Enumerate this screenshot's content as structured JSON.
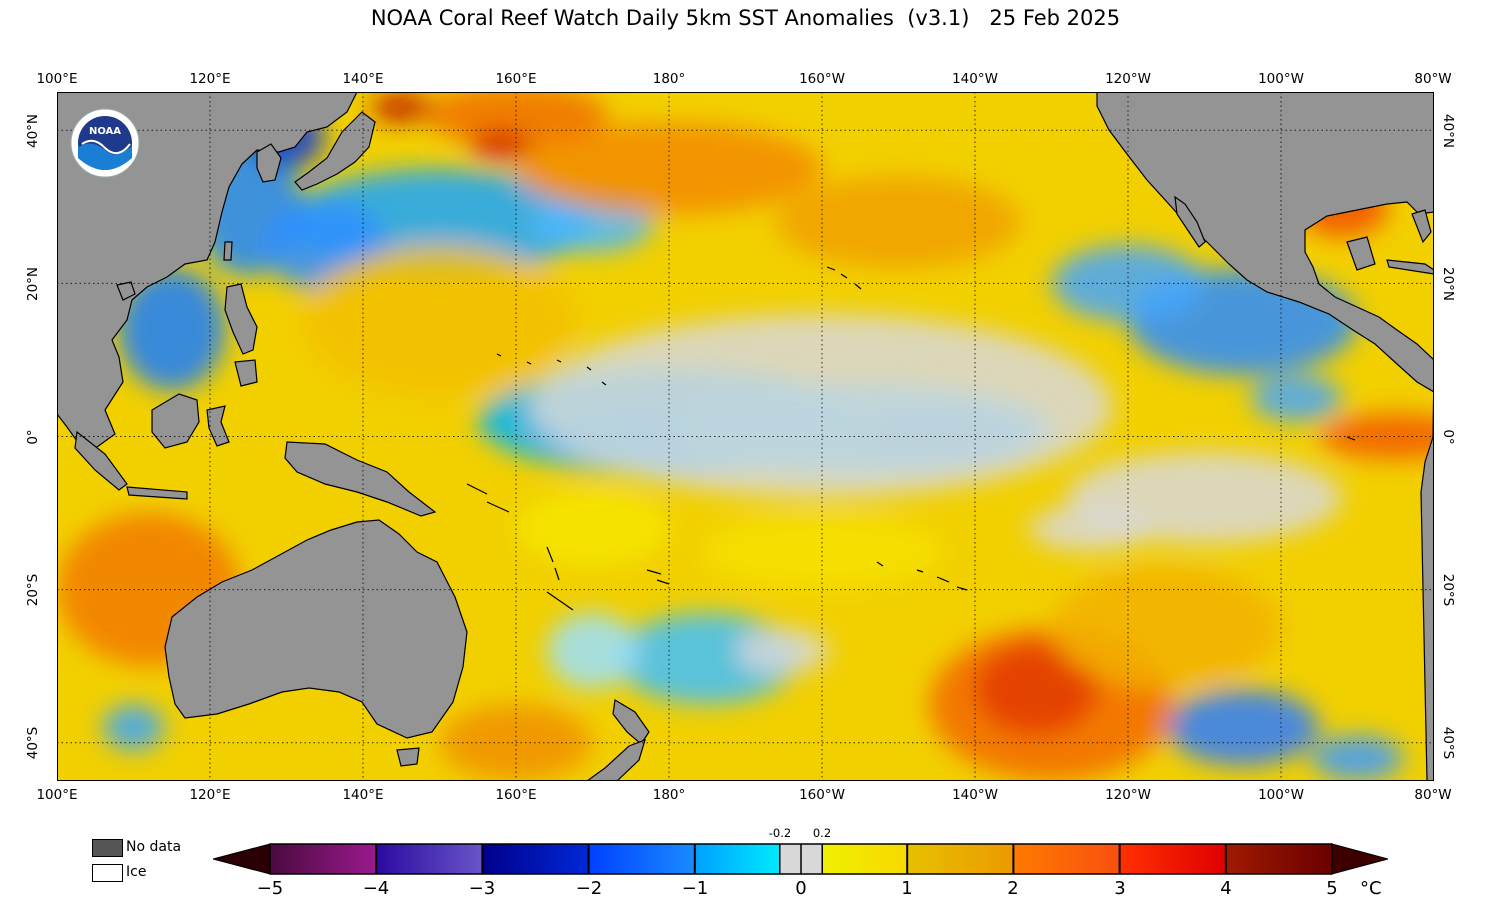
{
  "title": "NOAA Coral Reef Watch Daily 5km SST Anomalies  (v3.1)   25 Feb 2025",
  "lon_labels": [
    "100°E",
    "120°E",
    "140°E",
    "160°E",
    "180°",
    "160°W",
    "140°W",
    "120°W",
    "100°W",
    "80°W"
  ],
  "lat_labels": [
    "40°N",
    "20°N",
    "0°",
    "20°S",
    "40°S"
  ],
  "map": {
    "lon_range": [
      100,
      280
    ],
    "lat_range": [
      -45,
      45
    ],
    "projection": "equirectangular",
    "graticule_step_deg": 20,
    "graticule_style": "dotted",
    "land_color": "#949494",
    "ocean_base_color": "#F2D000",
    "logo_text": "NOAA"
  },
  "legend": {
    "nodata_label": "No data",
    "nodata_color": "#555555",
    "ice_label": "Ice",
    "ice_color": "#ffffff"
  },
  "colorbar": {
    "ticks": [
      "−5",
      "−4",
      "−3",
      "−2",
      "−1",
      "0",
      "1",
      "2",
      "3",
      "4",
      "5"
    ],
    "small_ticks": [
      "-0.2",
      "0.2"
    ],
    "unit": "°C",
    "range": [
      -5,
      5
    ],
    "segments": [
      {
        "from": -5,
        "to": -4,
        "c1": "#4a0a3f",
        "c2": "#9a1a8e"
      },
      {
        "from": -4,
        "to": -3,
        "c1": "#2a0aa0",
        "c2": "#6a55c8"
      },
      {
        "from": -3,
        "to": -2,
        "c1": "#00008a",
        "c2": "#0028d8"
      },
      {
        "from": -2,
        "to": -1,
        "c1": "#0040ff",
        "c2": "#1a8cff"
      },
      {
        "from": -1,
        "to": -0.2,
        "c1": "#00a0ff",
        "c2": "#00eaff"
      },
      {
        "from": -0.2,
        "to": 0.2,
        "c1": "#d8d8d8",
        "c2": "#d8d8d8"
      },
      {
        "from": 0.2,
        "to": 1,
        "c1": "#f0f000",
        "c2": "#f8d800"
      },
      {
        "from": 1,
        "to": 2,
        "c1": "#e8c000",
        "c2": "#ec9a00"
      },
      {
        "from": 2,
        "to": 3,
        "c1": "#ff7a00",
        "c2": "#f85010"
      },
      {
        "from": 3,
        "to": 4,
        "c1": "#ff3000",
        "c2": "#e00000"
      },
      {
        "from": 4,
        "to": 5,
        "c1": "#a01a00",
        "c2": "#6a0000"
      }
    ],
    "under_color": "#2a0004",
    "over_color": "#3c0000"
  },
  "anomaly_blobs": [
    {
      "lon": 185,
      "lat": 0,
      "rlon": 22,
      "rlat": 4,
      "color": "#0066ff"
    },
    {
      "lon": 215,
      "lat": 0,
      "rlon": 12,
      "rlat": 4,
      "color": "#0070ff"
    },
    {
      "lon": 180,
      "lat": 2,
      "rlon": 25,
      "rlat": 7,
      "color": "#00b4ff"
    },
    {
      "lon": 205,
      "lat": 1,
      "rlon": 25,
      "rlat": 6,
      "color": "#22c6ff"
    },
    {
      "lon": 200,
      "lat": 4,
      "rlon": 38,
      "rlat": 12,
      "color": "#d8d8d8"
    },
    {
      "lon": 150,
      "lat": 28,
      "rlon": 20,
      "rlat": 7,
      "color": "#18a6ff"
    },
    {
      "lon": 170,
      "lat": 28,
      "rlon": 8,
      "rlat": 4,
      "color": "#4bb8ff"
    },
    {
      "lon": 125,
      "lat": 30,
      "rlon": 7,
      "rlat": 9,
      "color": "#2287ff"
    },
    {
      "lon": 135,
      "lat": 25,
      "rlon": 8,
      "rlat": 6,
      "color": "#2f8fff"
    },
    {
      "lon": 115,
      "lat": 14,
      "rlon": 7,
      "rlat": 8,
      "color": "#1a7cff"
    },
    {
      "lon": 130,
      "lat": 39,
      "rlon": 5,
      "rlat": 4,
      "color": "#0a3cd8"
    },
    {
      "lon": 255,
      "lat": 15,
      "rlon": 15,
      "rlat": 7,
      "color": "#2a8cff"
    },
    {
      "lon": 240,
      "lat": 20,
      "rlon": 10,
      "rlat": 5,
      "color": "#45a6ff"
    },
    {
      "lon": 262,
      "lat": 5,
      "rlon": 6,
      "rlat": 3,
      "color": "#45a6ff"
    },
    {
      "lon": 250,
      "lat": -8,
      "rlon": 18,
      "rlat": 6,
      "color": "#d8d8d8"
    },
    {
      "lon": 185,
      "lat": -29,
      "rlon": 12,
      "rlat": 6,
      "color": "#40c0ff"
    },
    {
      "lon": 170,
      "lat": -28,
      "rlon": 6,
      "rlat": 5,
      "color": "#9ae0ff"
    },
    {
      "lon": 255,
      "lat": -38,
      "rlon": 10,
      "rlat": 5,
      "color": "#2e7dff"
    },
    {
      "lon": 270,
      "lat": -42,
      "rlon": 6,
      "rlat": 3,
      "color": "#3d9bff"
    },
    {
      "lon": 110,
      "lat": -38,
      "rlon": 4,
      "rlat": 3,
      "color": "#3aa6ff"
    },
    {
      "lon": 150,
      "lat": 15,
      "rlon": 18,
      "rlat": 10,
      "color": "#f2c000"
    },
    {
      "lon": 180,
      "lat": 35,
      "rlon": 20,
      "rlat": 6,
      "color": "#f28a00"
    },
    {
      "lon": 160,
      "lat": 42,
      "rlon": 12,
      "rlat": 4,
      "color": "#f07000"
    },
    {
      "lon": 145,
      "lat": 43,
      "rlon": 4,
      "rlat": 2,
      "color": "#c01a00"
    },
    {
      "lon": 158,
      "lat": 38,
      "rlon": 4,
      "rlat": 2,
      "color": "#d42000"
    },
    {
      "lon": 230,
      "lat": -35,
      "rlon": 16,
      "rlat": 10,
      "color": "#f26a00"
    },
    {
      "lon": 228,
      "lat": -33,
      "rlon": 8,
      "rlat": 6,
      "color": "#e33a00"
    },
    {
      "lon": 112,
      "lat": -20,
      "rlon": 12,
      "rlat": 10,
      "color": "#f27a00"
    },
    {
      "lon": 275,
      "lat": 0,
      "rlon": 10,
      "rlat": 3,
      "color": "#f25a00"
    },
    {
      "lon": 268,
      "lat": 30,
      "rlon": 6,
      "rlat": 4,
      "color": "#f25000"
    },
    {
      "lon": 210,
      "lat": 28,
      "rlon": 16,
      "rlat": 6,
      "color": "#f0a000"
    },
    {
      "lon": 200,
      "lat": -15,
      "rlon": 16,
      "rlat": 5,
      "color": "#f6e000"
    },
    {
      "lon": 170,
      "lat": -12,
      "rlon": 10,
      "rlat": 5,
      "color": "#f6e600"
    },
    {
      "lon": 245,
      "lat": -25,
      "rlon": 15,
      "rlat": 8,
      "color": "#f2b000"
    },
    {
      "lon": 160,
      "lat": -40,
      "rlon": 10,
      "rlat": 5,
      "color": "#f09000"
    },
    {
      "lon": 235,
      "lat": -12,
      "rlon": 8,
      "rlat": 3,
      "color": "#d8d8d8"
    },
    {
      "lon": 195,
      "lat": -28,
      "rlon": 6,
      "rlat": 3,
      "color": "#d8d8d8"
    }
  ]
}
